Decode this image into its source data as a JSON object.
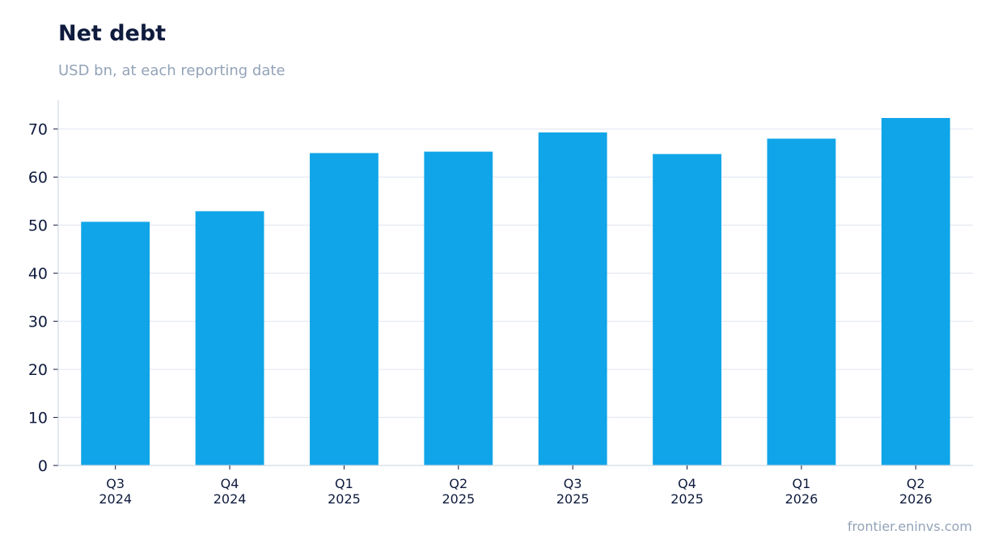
{
  "title": "Net debt",
  "subtitle": "USD bn, at each reporting date",
  "source": "frontier.eninvs.com",
  "colors": {
    "bar": "#10a5e8",
    "grid": "#e3e8f0",
    "axis": "#d1d9e4",
    "text": "#0f1b3d",
    "muted": "#93a3b8"
  },
  "chart_data": {
    "type": "bar",
    "title": "Net debt",
    "subtitle": "USD bn, at each reporting date",
    "categories": [
      "Q3\n2024",
      "Q4\n2024",
      "Q1\n2025",
      "Q2\n2025",
      "Q3\n2025",
      "Q4\n2025",
      "Q1\n2026",
      "Q2\n2026"
    ],
    "values": [
      50.7,
      52.9,
      65.0,
      65.3,
      69.3,
      64.8,
      68.0,
      72.3
    ],
    "ylim": [
      0,
      76
    ],
    "yticks": [
      0,
      10,
      20,
      30,
      40,
      50,
      60,
      70
    ],
    "xlabel": "",
    "ylabel": "",
    "grid": "horizontal",
    "legend": "none"
  }
}
